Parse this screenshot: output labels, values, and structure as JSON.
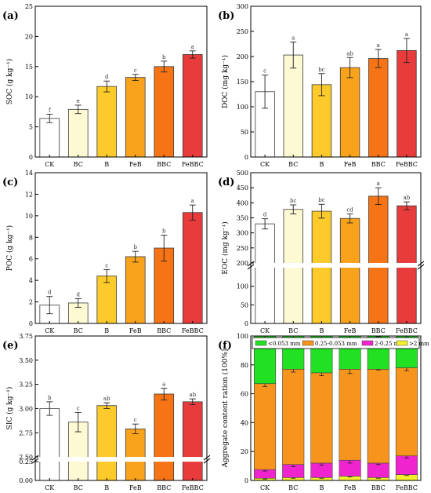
{
  "chart_data": [
    {
      "panel_label": "(a)",
      "type": "bar",
      "ylabel": "SOC (g kg⁻¹)",
      "ylim": [
        0,
        25
      ],
      "yticks": [
        0,
        5,
        10,
        15,
        20,
        25
      ],
      "categories": [
        "CK",
        "BC",
        "B",
        "FeB",
        "BBC",
        "FeBBC"
      ],
      "values": [
        6.4,
        7.9,
        11.7,
        13.2,
        15.0,
        17.0
      ],
      "errors": [
        0.7,
        0.7,
        0.9,
        0.5,
        0.9,
        0.6
      ],
      "letters": [
        "f",
        "e",
        "d",
        "c",
        "b",
        "a"
      ],
      "colors": [
        "#ffffff",
        "#fdf9d2",
        "#fcca2a",
        "#f9a31d",
        "#f77416",
        "#e83c3c"
      ],
      "legend_box_color": "#a5d45c"
    },
    {
      "panel_label": "(b)",
      "type": "bar",
      "ylabel": "DOC (mg kg⁻¹)",
      "ylim": [
        0,
        300
      ],
      "yticks": [
        0,
        50,
        100,
        150,
        200,
        250,
        300
      ],
      "categories": [
        "CK",
        "BC",
        "B",
        "FeB",
        "BBC",
        "FeBBC"
      ],
      "values": [
        130,
        203,
        144,
        178,
        196,
        212
      ],
      "errors": [
        33,
        26,
        22,
        20,
        18,
        24
      ],
      "letters": [
        "c",
        "a",
        "bc",
        "ab",
        "a",
        "a"
      ],
      "colors": [
        "#ffffff",
        "#fdf9d2",
        "#fcca2a",
        "#f9a31d",
        "#f77416",
        "#e83c3c"
      ]
    },
    {
      "panel_label": "(c)",
      "type": "bar",
      "ylabel": "POC (g kg⁻¹)",
      "ylim": [
        0,
        14
      ],
      "yticks": [
        0,
        2,
        4,
        6,
        8,
        10,
        12,
        14
      ],
      "categories": [
        "CK",
        "BC",
        "B",
        "FeB",
        "BBC",
        "FeBBC"
      ],
      "values": [
        1.7,
        1.9,
        4.4,
        6.2,
        7.0,
        10.3
      ],
      "errors": [
        0.8,
        0.4,
        0.6,
        0.5,
        1.2,
        0.7
      ],
      "letters": [
        "d",
        "d",
        "c",
        "b",
        "b",
        "a"
      ],
      "colors": [
        "#ffffff",
        "#fdf9d2",
        "#fcca2a",
        "#f9a31d",
        "#f77416",
        "#e83c3c"
      ]
    },
    {
      "panel_label": "(d)",
      "type": "bar",
      "ylabel": "EOC (mg kg⁻¹)",
      "axis_break": [
        150,
        200
      ],
      "ylim": [
        0,
        500
      ],
      "yticks": [
        0,
        50,
        100,
        200,
        250,
        300,
        350,
        400,
        450,
        500
      ],
      "categories": [
        "CK",
        "BC",
        "B",
        "FeB",
        "BBC",
        "FeBBC"
      ],
      "values": [
        330,
        378,
        372,
        348,
        422,
        390
      ],
      "errors": [
        17,
        15,
        23,
        15,
        28,
        13
      ],
      "letters": [
        "d",
        "bc",
        "bc",
        "cd",
        "a",
        "ab"
      ],
      "colors": [
        "#ffffff",
        "#fdf9d2",
        "#fcca2a",
        "#f9a31d",
        "#f77416",
        "#e83c3c"
      ]
    },
    {
      "panel_label": "(e)",
      "type": "bar",
      "ylabel": "SIC (g kg⁻¹)",
      "axis_break": [
        0.25,
        2.5
      ],
      "ylim": [
        0,
        3.75
      ],
      "yticks": [
        0,
        0.25,
        2.5,
        2.75,
        3.0,
        3.25,
        3.5,
        3.75
      ],
      "ytick_labels": [
        "0.00",
        "0.25",
        "2.50",
        "2.75",
        "3.00",
        "3.25",
        "3.50",
        "3.75"
      ],
      "categories": [
        "CK",
        "BC",
        "B",
        "FeB",
        "BBC",
        "FeBBC"
      ],
      "values": [
        3.0,
        2.86,
        3.03,
        2.79,
        3.15,
        3.07
      ],
      "errors": [
        0.07,
        0.1,
        0.03,
        0.05,
        0.06,
        0.03
      ],
      "letters": [
        "b",
        "c",
        "ab",
        "c",
        "a",
        "ab"
      ],
      "colors": [
        "#ffffff",
        "#fdf9d2",
        "#fcca2a",
        "#f9a31d",
        "#f77416",
        "#e83c3c"
      ]
    },
    {
      "panel_label": "(f)",
      "type": "bar",
      "stacked": true,
      "ylabel": "Aggregate content ration (100%)",
      "ylim": [
        0,
        100
      ],
      "yticks": [
        0,
        20,
        40,
        60,
        80,
        100
      ],
      "categories": [
        "CK",
        "BC",
        "B",
        "FeB",
        "BBC",
        "FeBBC"
      ],
      "legend_position": "top",
      "series": [
        {
          "name": ">2 mm",
          "color": "#f5ef2b",
          "values": [
            1.5,
            2,
            2,
            3,
            2,
            4
          ],
          "errors": [
            0.5,
            0.5,
            0.5,
            0.6,
            0.5,
            0.6
          ]
        },
        {
          "name": "2-0.25 mm",
          "color": "#f024ce",
          "values": [
            6,
            9,
            10,
            11,
            10,
            13
          ],
          "errors": [
            1,
            1.5,
            1.5,
            2,
            1,
            1.5
          ]
        },
        {
          "name": "0.25-0.053 mm",
          "color": "#f7941d",
          "values": [
            59.5,
            66,
            62.5,
            63,
            65,
            61
          ],
          "errors": [
            2,
            2,
            2,
            3,
            0.5,
            2
          ]
        },
        {
          "name": "<0.053 mm",
          "color": "#22e022",
          "values": [
            33,
            23,
            25.5,
            23,
            23,
            22
          ],
          "errors": [
            2,
            2,
            3.5,
            2.5,
            0.5,
            1
          ]
        }
      ]
    }
  ]
}
